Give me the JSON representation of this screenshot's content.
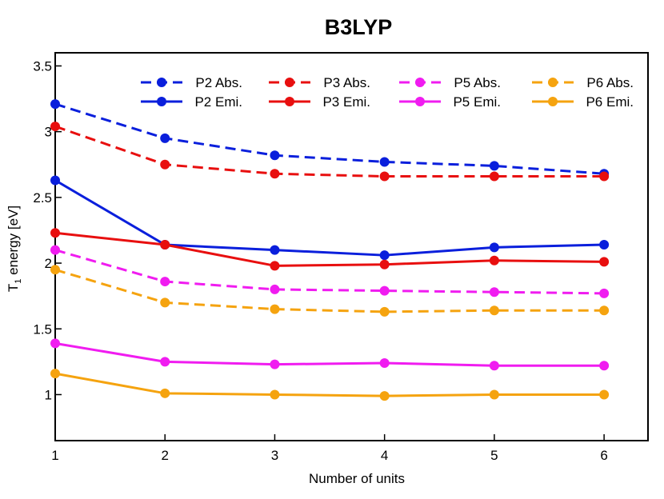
{
  "chart_data": {
    "type": "line",
    "title": "B3LYP",
    "xlabel": "Number of units",
    "ylabel": {
      "main": "T",
      "subscript": "1",
      "rest": " energy [eV]"
    },
    "x": [
      1,
      2,
      3,
      4,
      5,
      6
    ],
    "xlim": [
      1,
      6.4
    ],
    "ylim": [
      0.65,
      3.6
    ],
    "xticks": [
      "1",
      "2",
      "3",
      "4",
      "5",
      "6"
    ],
    "yticks": [
      {
        "value": 1,
        "label": "1"
      },
      {
        "value": 1.5,
        "label": "1.5"
      },
      {
        "value": 2,
        "label": "2"
      },
      {
        "value": 2.5,
        "label": "2.5"
      },
      {
        "value": 3,
        "label": "3"
      },
      {
        "value": 3.5,
        "label": "3.5"
      }
    ],
    "grid": false,
    "legend_position": "top-right",
    "series": [
      {
        "name": "P2 Abs.",
        "color": "#0a1fdc",
        "dash": true,
        "values": [
          3.21,
          2.95,
          2.82,
          2.77,
          2.74,
          2.68
        ]
      },
      {
        "name": "P2 Emi.",
        "color": "#0a1fdc",
        "dash": false,
        "values": [
          2.63,
          2.14,
          2.1,
          2.06,
          2.12,
          2.14
        ]
      },
      {
        "name": "P3 Abs.",
        "color": "#e80f0f",
        "dash": true,
        "values": [
          3.04,
          2.75,
          2.68,
          2.66,
          2.66,
          2.66
        ]
      },
      {
        "name": "P3 Emi.",
        "color": "#e80f0f",
        "dash": false,
        "values": [
          2.23,
          2.14,
          1.98,
          1.99,
          2.02,
          2.01
        ]
      },
      {
        "name": "P5 Abs.",
        "color": "#f01cf0",
        "dash": true,
        "values": [
          2.1,
          1.86,
          1.8,
          1.79,
          1.78,
          1.77
        ]
      },
      {
        "name": "P5 Emi.",
        "color": "#f01cf0",
        "dash": false,
        "values": [
          1.39,
          1.25,
          1.23,
          1.24,
          1.22,
          1.22
        ]
      },
      {
        "name": "P6 Abs.",
        "color": "#f5a30f",
        "dash": true,
        "values": [
          1.95,
          1.7,
          1.65,
          1.63,
          1.64,
          1.64
        ]
      },
      {
        "name": "P6 Emi.",
        "color": "#f5a30f",
        "dash": false,
        "values": [
          1.16,
          1.01,
          1.0,
          0.99,
          1.0,
          1.0
        ]
      }
    ]
  }
}
